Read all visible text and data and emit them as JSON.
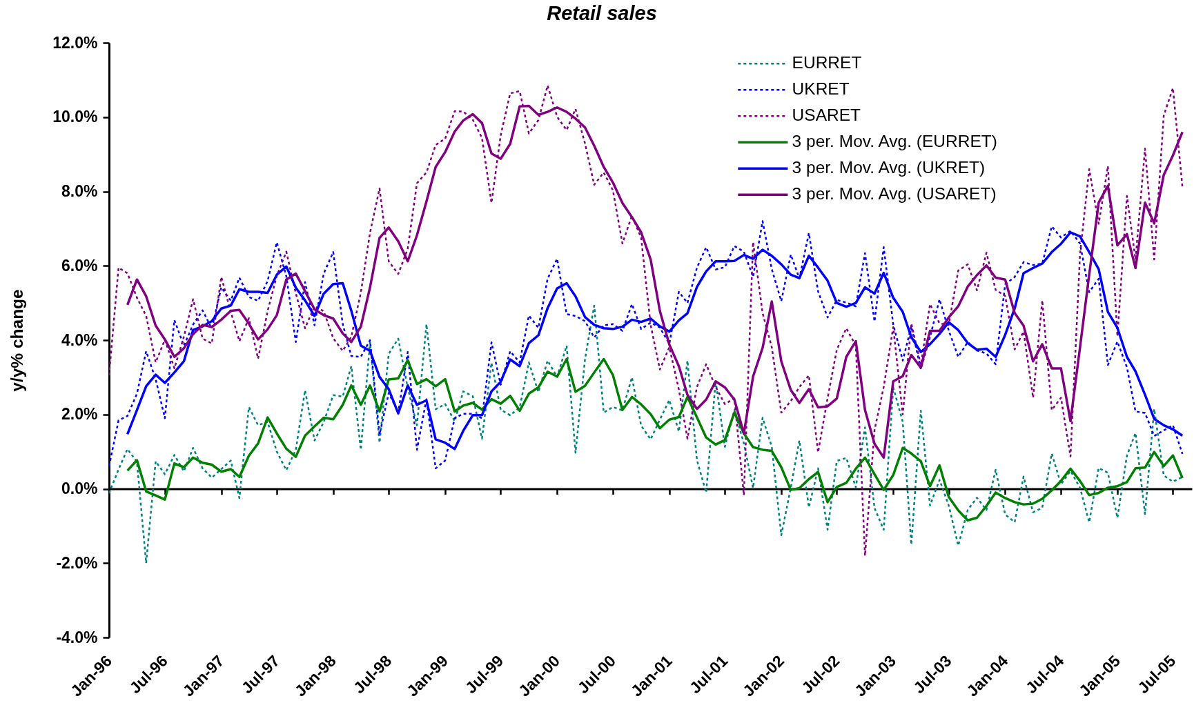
{
  "chart_data": {
    "type": "line",
    "title": "Retail sales",
    "ylabel": "y/y% change",
    "legend": "top right",
    "x": [
      "1996-01",
      "1996-02",
      "1996-03",
      "1996-04",
      "1996-05",
      "1996-06",
      "1996-07",
      "1996-08",
      "1996-09",
      "1996-10",
      "1996-11",
      "1996-12",
      "1997-01",
      "1997-02",
      "1997-03",
      "1997-04",
      "1997-05",
      "1997-06",
      "1997-07",
      "1997-08",
      "1997-09",
      "1997-10",
      "1997-11",
      "1997-12",
      "1998-01",
      "1998-02",
      "1998-03",
      "1998-04",
      "1998-05",
      "1998-06",
      "1998-07",
      "1998-08",
      "1998-09",
      "1998-10",
      "1998-11",
      "1998-12",
      "1999-01",
      "1999-02",
      "1999-03",
      "1999-04",
      "1999-05",
      "1999-06",
      "1999-07",
      "1999-08",
      "1999-09",
      "1999-10",
      "1999-11",
      "1999-12",
      "2000-01",
      "2000-02",
      "2000-03",
      "2000-04",
      "2000-05",
      "2000-06",
      "2000-07",
      "2000-08",
      "2000-09",
      "2000-10",
      "2000-11",
      "2000-12",
      "2001-01",
      "2001-02",
      "2001-03",
      "2001-04",
      "2001-05",
      "2001-06",
      "2001-07",
      "2001-08",
      "2001-09",
      "2001-10",
      "2001-11",
      "2001-12",
      "2002-01",
      "2002-02",
      "2002-03",
      "2002-04",
      "2002-05",
      "2002-06",
      "2002-07",
      "2002-08",
      "2002-09",
      "2002-10",
      "2002-11",
      "2002-12",
      "2003-01",
      "2003-02",
      "2003-03",
      "2003-04",
      "2003-05",
      "2003-06",
      "2003-07",
      "2003-08",
      "2003-09",
      "2003-10",
      "2003-11",
      "2003-12",
      "2004-01",
      "2004-02",
      "2004-03",
      "2004-04",
      "2004-05",
      "2004-06",
      "2004-07",
      "2004-08",
      "2004-09",
      "2004-10",
      "2004-11",
      "2004-12",
      "2005-01",
      "2005-02",
      "2005-03",
      "2005-04",
      "2005-05",
      "2005-06",
      "2005-07",
      "2005-08"
    ],
    "xlim": [
      "1996-01",
      "2005-09"
    ],
    "xticks": [
      {
        "value": "1996-01",
        "label": "Jan-96"
      },
      {
        "value": "1996-07",
        "label": "Jul-96"
      },
      {
        "value": "1997-01",
        "label": "Jan-97"
      },
      {
        "value": "1997-07",
        "label": "Jul-97"
      },
      {
        "value": "1998-01",
        "label": "Jan-98"
      },
      {
        "value": "1998-07",
        "label": "Jul-98"
      },
      {
        "value": "1999-01",
        "label": "Jan-99"
      },
      {
        "value": "1999-07",
        "label": "Jul-99"
      },
      {
        "value": "2000-01",
        "label": "Jan-00"
      },
      {
        "value": "2000-07",
        "label": "Jul-00"
      },
      {
        "value": "2001-01",
        "label": "Jan-01"
      },
      {
        "value": "2001-07",
        "label": "Jul-01"
      },
      {
        "value": "2002-01",
        "label": "Jan-02"
      },
      {
        "value": "2002-07",
        "label": "Jul-02"
      },
      {
        "value": "2003-01",
        "label": "Jan-03"
      },
      {
        "value": "2003-07",
        "label": "Jul-03"
      },
      {
        "value": "2004-01",
        "label": "Jan-04"
      },
      {
        "value": "2004-07",
        "label": "Jul-04"
      },
      {
        "value": "2005-01",
        "label": "Jan-05"
      },
      {
        "value": "2005-07",
        "label": "Jul-05"
      }
    ],
    "ylim": [
      -4,
      12
    ],
    "yticks": [
      {
        "value": -4,
        "label": "-4.0%"
      },
      {
        "value": -2,
        "label": "-2.0%"
      },
      {
        "value": 0,
        "label": "0.0%"
      },
      {
        "value": 2,
        "label": "2.0%"
      },
      {
        "value": 4,
        "label": "4.0%"
      },
      {
        "value": 6,
        "label": "6.0%"
      },
      {
        "value": 8,
        "label": "8.0%"
      },
      {
        "value": 10,
        "label": "10.0%"
      },
      {
        "value": 12,
        "label": "12.0%"
      }
    ],
    "series": [
      {
        "name": "EURRET",
        "color": "#008080",
        "line_style": "dotted",
        "values": [
          -0.12,
          0.52,
          1.07,
          0.72,
          -2.0,
          0.74,
          0.39,
          0.91,
          0.47,
          1.1,
          0.55,
          0.3,
          0.53,
          0.76,
          -0.25,
          2.2,
          1.71,
          1.8,
          1.0,
          0.5,
          1.05,
          2.65,
          1.3,
          1.8,
          2.52,
          2.48,
          3.3,
          1.05,
          3.95,
          1.24,
          3.63,
          4.04,
          2.71,
          1.71,
          4.43,
          2.14,
          2.28,
          1.82,
          2.62,
          2.49,
          1.35,
          3.39,
          2.13,
          1.98,
          2.19,
          3.4,
          2.6,
          3.45,
          3.01,
          3.85,
          0.97,
          3.49,
          4.93,
          2.05,
          2.2,
          2.11,
          3.0,
          1.7,
          1.33,
          1.86,
          2.39,
          1.54,
          3.45,
          0.77,
          -0.1,
          2.9,
          1.13,
          2.12,
          1.22,
          0.02,
          1.91,
          1.13,
          -1.25,
          0.03,
          1.3,
          -0.5,
          0.55,
          -1.1,
          0.75,
          0.83,
          0.04,
          1.65,
          -0.52,
          -1.1,
          2.73,
          1.8,
          -1.5,
          2.1,
          -0.45,
          0.24,
          -0.45,
          -1.53,
          -0.57,
          -0.24,
          -0.57,
          0.51,
          -0.69,
          -0.9,
          0.33,
          -0.63,
          -0.51,
          0.95,
          0.12,
          0.48,
          0.03,
          -0.9,
          0.56,
          0.43,
          -0.78,
          0.89,
          1.5,
          -0.68,
          2.15,
          0.36,
          0.19,
          0.32
        ]
      },
      {
        "name": "UKRET",
        "color": "#0000ff",
        "line_style": "dotted",
        "values": [
          0.61,
          1.84,
          1.96,
          2.56,
          3.7,
          2.95,
          1.9,
          4.54,
          3.85,
          4.42,
          4.8,
          4.31,
          5.42,
          5.06,
          5.68,
          5.16,
          5.06,
          5.59,
          6.63,
          5.72,
          3.95,
          5.56,
          4.4,
          5.79,
          6.37,
          4.43,
          3.57,
          3.55,
          4.0,
          1.46,
          2.58,
          2.05,
          3.68,
          1.05,
          2.41,
          0.55,
          0.76,
          1.9,
          2.02,
          2.02,
          1.9,
          3.94,
          2.8,
          3.7,
          3.4,
          4.66,
          4.33,
          5.65,
          6.19,
          4.7,
          4.65,
          4.51,
          4.07,
          4.4,
          4.43,
          4.25,
          4.97,
          4.3,
          4.47,
          4.34,
          3.9,
          5.3,
          5.0,
          5.95,
          6.5,
          5.9,
          5.96,
          6.53,
          6.38,
          5.7,
          7.2,
          5.91,
          5.05,
          6.3,
          5.66,
          6.88,
          5.31,
          4.61,
          5.08,
          5.01,
          4.91,
          6.34,
          4.5,
          6.5,
          4.42,
          3.45,
          4.37,
          3.22,
          4.08,
          5.1,
          4.26,
          3.55,
          3.95,
          3.72,
          3.64,
          3.35,
          5.5,
          5.7,
          6.1,
          6.02,
          6.06,
          7.06,
          6.76,
          6.94,
          6.6,
          5.29,
          5.65,
          3.33,
          3.96,
          3.27,
          2.08,
          2.04,
          1.42,
          1.57,
          1.71,
          0.94
        ]
      },
      {
        "name": "USARET",
        "color": "#800080",
        "line_style": "dotted",
        "values": [
          3.05,
          5.95,
          5.8,
          5.14,
          4.65,
          3.4,
          4.01,
          3.24,
          4.09,
          5.1,
          4.04,
          3.91,
          5.7,
          4.76,
          3.97,
          4.59,
          3.5,
          4.78,
          5.73,
          6.38,
          5.26,
          4.32,
          4.91,
          4.78,
          4.05,
          3.71,
          4.09,
          5.28,
          6.89,
          8.08,
          6.12,
          5.78,
          6.46,
          8.22,
          8.51,
          9.25,
          9.42,
          10.16,
          10.15,
          9.93,
          9.44,
          7.69,
          9.51,
          10.64,
          10.7,
          9.56,
          9.92,
          10.85,
          10.01,
          9.65,
          10.22,
          9.29,
          8.18,
          8.51,
          8.03,
          6.6,
          7.35,
          6.75,
          4.41,
          3.21,
          3.81,
          2.67,
          1.35,
          2.74,
          3.35,
          2.74,
          2.28,
          2.43,
          -0.17,
          6.64,
          4.73,
          3.81,
          2.05,
          2.36,
          2.74,
          3.05,
          0.98,
          2.44,
          3.74,
          4.32,
          3.85,
          -1.8,
          1.58,
          2.74,
          4.35,
          2.0,
          4.45,
          3.33,
          4.97,
          4.45,
          4.41,
          5.87,
          6.04,
          5.34,
          6.35,
          5.35,
          5.19,
          3.75,
          4.23,
          2.45,
          5.07,
          2.12,
          2.45,
          0.87,
          6.3,
          8.6,
          7.13,
          8.68,
          4.1,
          7.88,
          6.17,
          9.15,
          6.17,
          10.04,
          10.78,
          8.12
        ]
      },
      {
        "name": "3 per. Mov. Avg. (EURRET)",
        "color": "#008000",
        "line_style": "solid",
        "values": [
          null,
          null,
          0.49,
          0.77,
          -0.07,
          -0.18,
          -0.29,
          0.68,
          0.58,
          0.84,
          0.7,
          0.65,
          0.46,
          0.53,
          0.32,
          0.89,
          1.22,
          1.92,
          1.49,
          1.08,
          0.86,
          1.43,
          1.68,
          1.91,
          1.87,
          2.26,
          2.78,
          2.26,
          2.78,
          2.08,
          2.94,
          2.97,
          3.46,
          2.82,
          2.95,
          2.76,
          2.95,
          2.08,
          2.24,
          2.31,
          2.13,
          2.41,
          2.29,
          2.5,
          2.1,
          2.56,
          2.73,
          3.15,
          3.02,
          3.49,
          2.61,
          2.77,
          3.13,
          3.49,
          3.06,
          2.12,
          2.47,
          2.27,
          2.01,
          1.63,
          1.86,
          1.93,
          2.47,
          1.92,
          1.38,
          1.19,
          1.31,
          2.05,
          1.49,
          1.12,
          1.05,
          1.02,
          0.58,
          -0.03,
          0.02,
          0.26,
          0.45,
          -0.36,
          0.05,
          0.16,
          0.54,
          0.84,
          0.39,
          -0.03,
          0.37,
          1.1,
          0.95,
          0.74,
          0.07,
          0.63,
          -0.22,
          -0.58,
          -0.85,
          -0.78,
          -0.46,
          -0.1,
          -0.25,
          -0.36,
          -0.42,
          -0.4,
          -0.27,
          -0.04,
          0.21,
          0.54,
          0.21,
          -0.17,
          -0.11,
          0.03,
          0.07,
          0.18,
          0.55,
          0.57,
          0.99,
          0.61,
          0.9,
          0.29
        ]
      },
      {
        "name": "3 per. Mov. Avg. (UKRET)",
        "color": "#0000ff",
        "line_style": "solid",
        "values": [
          null,
          null,
          1.47,
          2.12,
          2.76,
          3.07,
          2.85,
          3.13,
          3.43,
          4.27,
          4.37,
          4.51,
          4.85,
          4.93,
          5.37,
          5.3,
          5.3,
          5.27,
          5.76,
          5.98,
          5.41,
          5.07,
          4.65,
          5.25,
          5.51,
          5.53,
          4.79,
          3.85,
          3.71,
          3.01,
          2.68,
          2.03,
          2.78,
          2.26,
          2.38,
          1.33,
          1.24,
          1.07,
          1.56,
          1.98,
          1.98,
          2.62,
          2.88,
          3.48,
          3.3,
          3.92,
          4.13,
          4.86,
          5.39,
          5.53,
          5.18,
          4.62,
          4.41,
          4.32,
          4.3,
          4.36,
          4.55,
          4.49,
          4.58,
          4.37,
          4.23,
          4.53,
          4.72,
          5.43,
          5.85,
          6.12,
          6.12,
          6.13,
          6.29,
          6.19,
          6.43,
          6.27,
          6.04,
          5.76,
          5.67,
          6.27,
          5.95,
          5.6,
          5.0,
          4.9,
          5.0,
          5.42,
          5.25,
          5.81,
          5.14,
          4.76,
          4.08,
          3.68,
          3.89,
          4.17,
          4.48,
          4.27,
          3.92,
          3.74,
          3.77,
          3.55,
          4.14,
          4.85,
          5.8,
          5.94,
          6.06,
          6.37,
          6.59,
          6.9,
          6.79,
          6.37,
          5.91,
          4.76,
          4.33,
          3.55,
          3.16,
          2.53,
          1.88,
          1.71,
          1.6,
          1.43
        ]
      },
      {
        "name": "3 per. Mov. Avg. (USARET)",
        "color": "#800080",
        "line_style": "solid",
        "values": [
          null,
          null,
          4.95,
          5.63,
          5.18,
          4.39,
          4.02,
          3.55,
          3.78,
          4.16,
          4.41,
          4.35,
          4.55,
          4.79,
          4.81,
          4.44,
          4.02,
          4.29,
          4.67,
          5.63,
          5.79,
          5.32,
          4.83,
          4.67,
          4.58,
          4.18,
          3.95,
          4.36,
          5.42,
          6.75,
          7.03,
          6.66,
          6.12,
          6.82,
          7.73,
          8.66,
          9.06,
          9.61,
          9.91,
          10.08,
          9.84,
          9.02,
          8.88,
          9.28,
          10.29,
          10.3,
          10.06,
          10.14,
          10.26,
          10.14,
          9.96,
          9.72,
          9.23,
          8.66,
          8.24,
          7.69,
          7.31,
          6.9,
          6.17,
          4.79,
          3.88,
          3.3,
          2.53,
          2.15,
          2.4,
          2.89,
          2.73,
          2.4,
          1.49,
          3.02,
          3.79,
          5.04,
          3.43,
          2.66,
          2.31,
          2.68,
          2.19,
          2.22,
          2.43,
          3.55,
          3.97,
          2.12,
          1.21,
          0.84,
          2.89,
          3.03,
          3.6,
          3.26,
          4.25,
          4.25,
          4.61,
          4.91,
          5.44,
          5.75,
          6.01,
          5.68,
          5.63,
          4.73,
          4.39,
          3.43,
          3.89,
          3.24,
          3.24,
          1.82,
          3.8,
          5.76,
          7.7,
          8.15,
          6.55,
          6.85,
          5.94,
          7.7,
          7.14,
          8.44,
          8.97,
          9.6
        ]
      }
    ]
  }
}
